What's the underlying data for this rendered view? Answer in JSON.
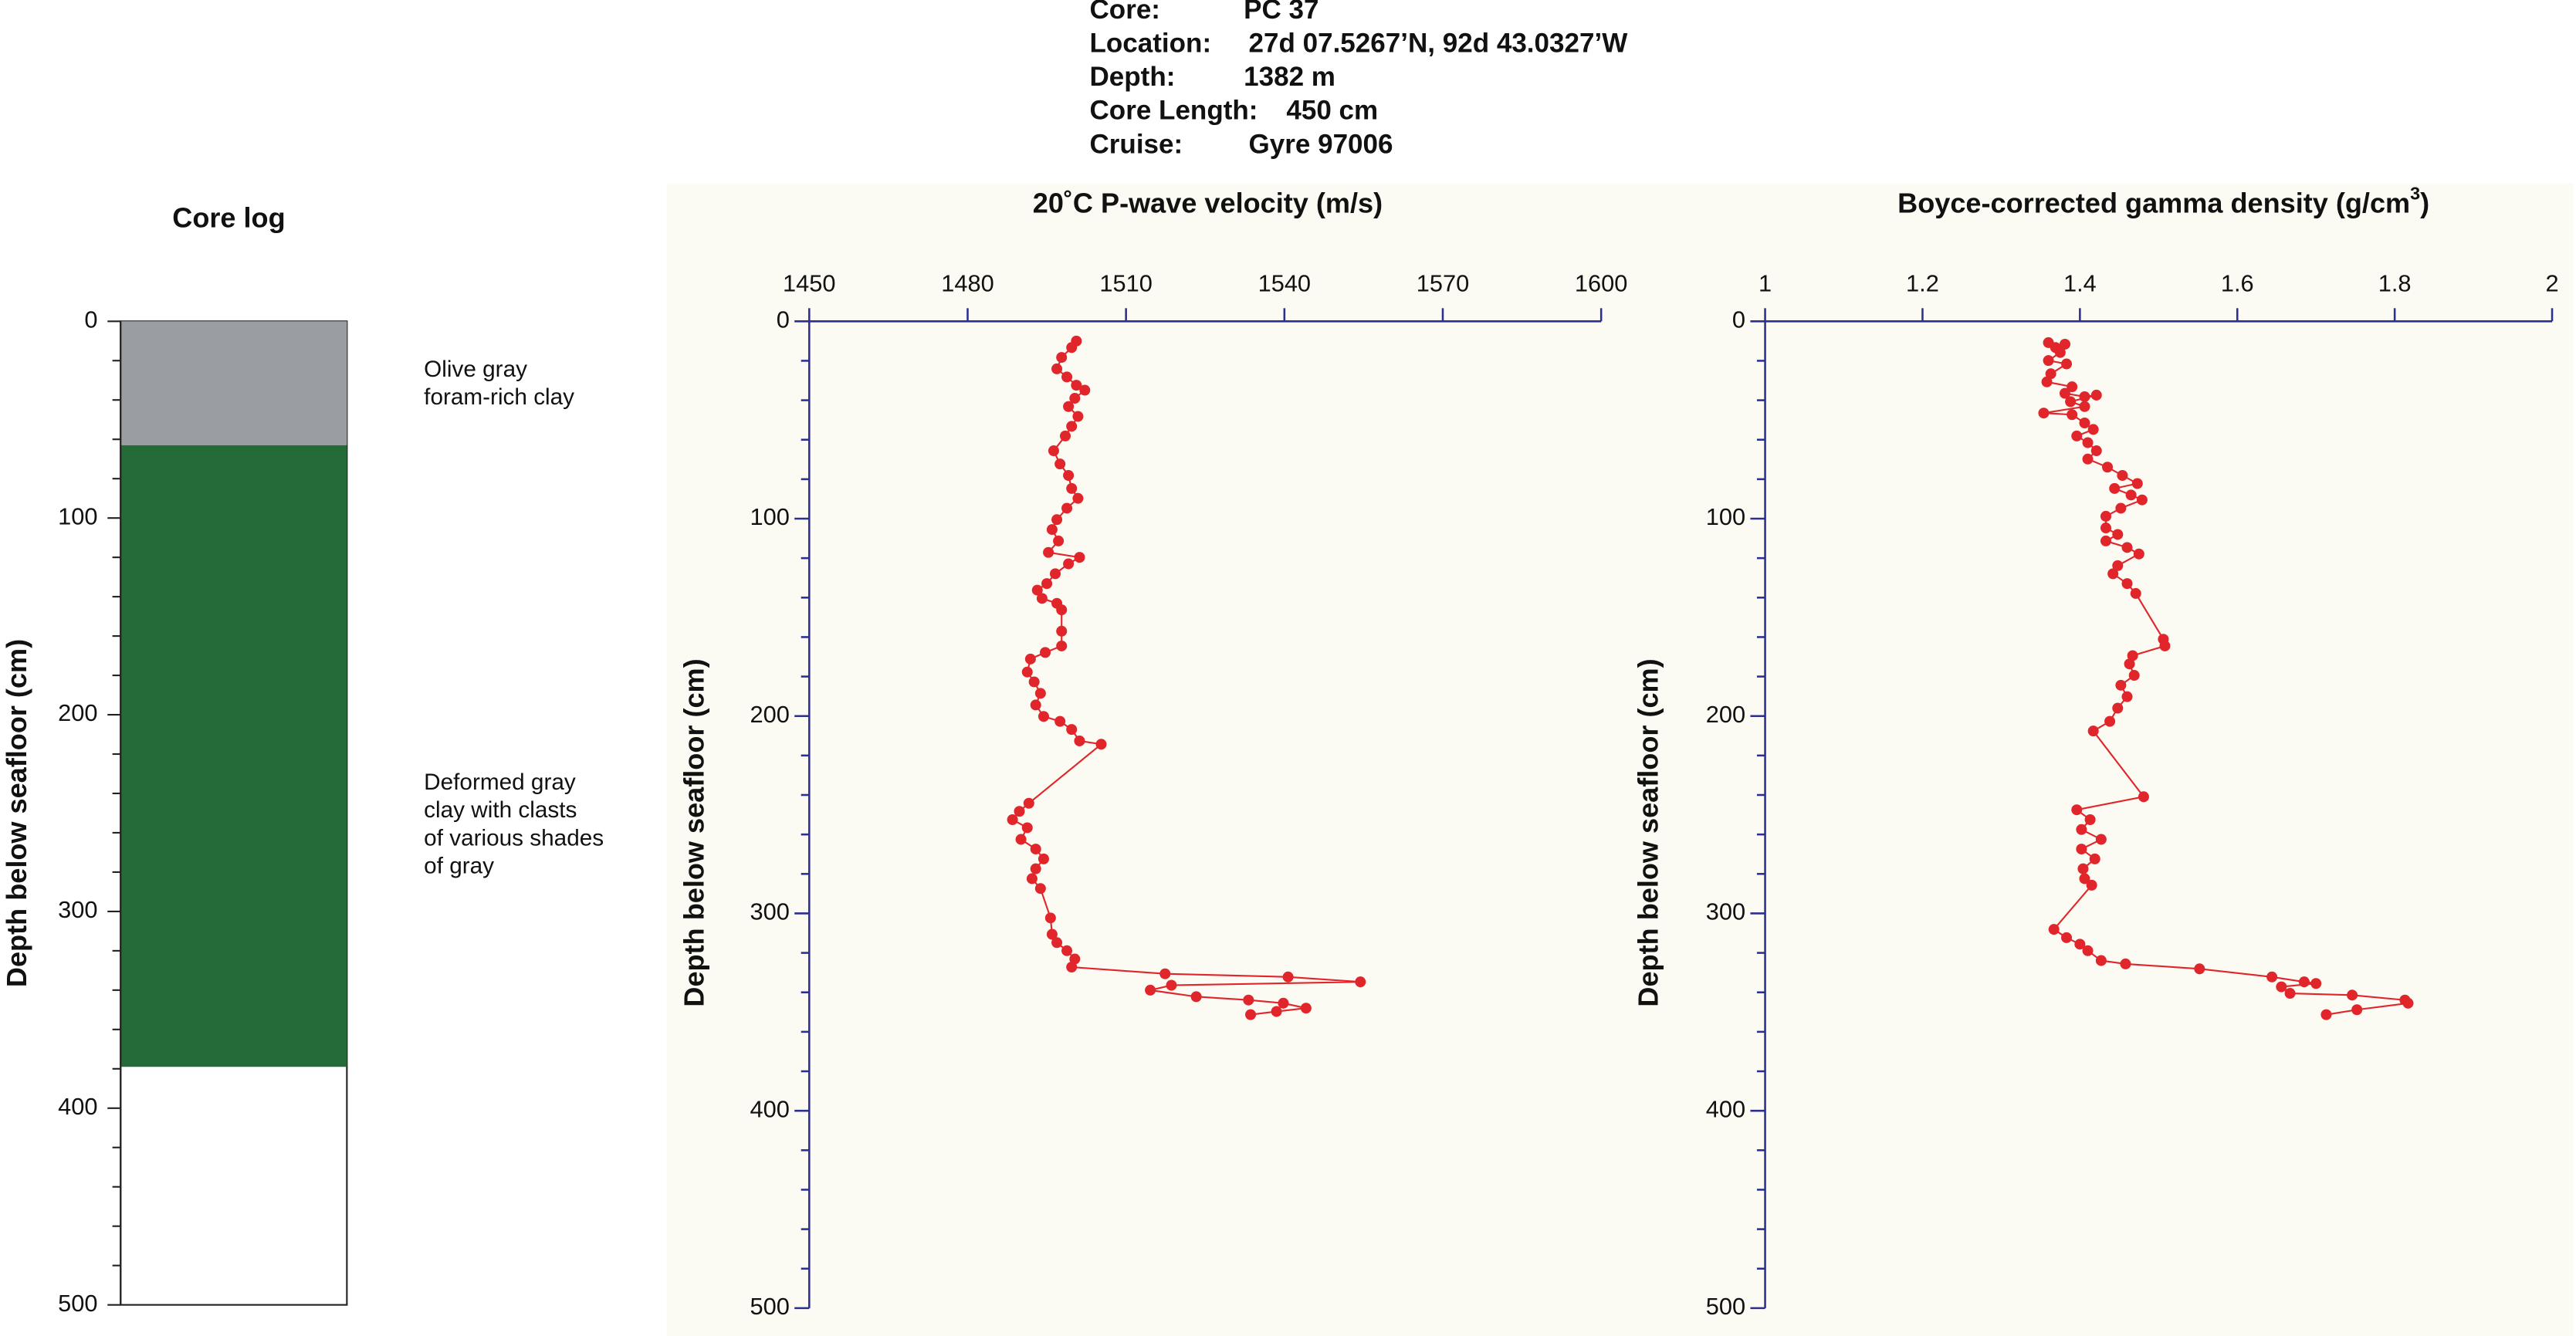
{
  "header": {
    "rows": [
      [
        "Core:",
        "PC 37"
      ],
      [
        "Location:",
        "27d 07.5267’N, 92d 43.0327’W"
      ],
      [
        "Depth:",
        "1382 m"
      ],
      [
        "Core Length:",
        "450 cm"
      ],
      [
        "Cruise:",
        "Gyre 97006"
      ]
    ]
  },
  "chart_data": [
    {
      "type": "core-log",
      "title": "Core log",
      "ylabel": "Depth below seafloor (cm)",
      "ylim": [
        0,
        500
      ],
      "yticks": [
        0,
        100,
        200,
        300,
        400,
        500
      ],
      "minor_yticks": [
        20,
        40,
        60,
        80,
        120,
        140,
        160,
        180,
        220,
        240,
        260,
        280,
        320,
        340,
        360,
        380,
        420,
        440,
        460,
        480
      ],
      "layers": [
        {
          "top": 0,
          "bottom": 63,
          "color": "#9a9da1",
          "label_lines": [
            "Olive gray",
            "foram-rich clay"
          ]
        },
        {
          "top": 63,
          "bottom": 379,
          "color": "#256b38",
          "label_lines": [
            "Deformed gray",
            "clay with clasts",
            "of various shades",
            "of gray"
          ]
        }
      ]
    },
    {
      "type": "profile",
      "title": "20˚C P-wave velocity (m/s)",
      "ylabel": "Depth below seafloor (cm)",
      "xlim": [
        1450,
        1600
      ],
      "xticks": [
        1450,
        1480,
        1510,
        1540,
        1570,
        1600
      ],
      "ylim": [
        0,
        500
      ],
      "yticks": [
        0,
        100,
        200,
        300,
        400,
        500
      ],
      "minor_yticks": [
        20,
        40,
        60,
        80,
        120,
        140,
        160,
        180,
        220,
        240,
        260,
        280,
        320,
        340,
        360,
        380,
        420,
        440,
        460,
        480
      ],
      "series": [
        {
          "color": "#e0262b",
          "values": [
            1500.6,
            1499.7,
            1497.8,
            1496.9,
            1498.8,
            1500.6,
            1502.2,
            1500.3,
            1499.1,
            1500.9,
            1499.7,
            1498.5,
            1496.3,
            1497.5,
            1499.1,
            1499.7,
            1500.9,
            1498.8,
            1496.9,
            1496.0,
            1497.2,
            1495.3,
            1501.2,
            1499.1,
            1496.6,
            1495.0,
            1493.2,
            1494.1,
            1496.9,
            1497.8,
            1497.8,
            1497.8,
            1494.7,
            1491.9,
            1491.3,
            1492.6,
            1493.8,
            1492.9,
            1494.4,
            1497.5,
            1499.7,
            1501.2,
            1505.3,
            1491.6,
            1489.8,
            1488.5,
            1491.3,
            1490.1,
            1492.9,
            1494.4,
            1492.9,
            1492.2,
            1493.8,
            1495.7,
            1496.0,
            1496.9,
            1498.8,
            1500.3,
            1499.7,
            1517.4,
            1540.7,
            1554.4,
            1518.6,
            1514.6,
            1523.3,
            1533.2,
            1539.8,
            1544.1,
            1538.5,
            1533.6
          ],
          "depths": [
            10.0,
            13.3,
            18.3,
            24.1,
            28.2,
            32.4,
            34.9,
            39.0,
            43.2,
            48.2,
            53.2,
            58.1,
            65.6,
            72.3,
            78.1,
            84.7,
            89.7,
            94.7,
            100.5,
            105.5,
            111.3,
            117.1,
            119.6,
            122.9,
            127.9,
            132.9,
            136.2,
            140.4,
            142.9,
            146.2,
            157.0,
            164.5,
            167.8,
            171.1,
            177.7,
            182.7,
            188.5,
            194.4,
            200.2,
            202.7,
            206.8,
            212.6,
            214.3,
            244.2,
            248.3,
            252.5,
            256.6,
            262.5,
            267.4,
            272.4,
            277.4,
            282.4,
            287.4,
            302.3,
            310.6,
            314.8,
            318.9,
            323.1,
            327.2,
            330.6,
            332.2,
            334.7,
            336.4,
            338.9,
            342.2,
            343.9,
            345.5,
            348.0,
            349.7,
            351.3
          ]
        }
      ]
    },
    {
      "type": "profile",
      "title": "Boyce-corrected gamma density (g/cm",
      "title_superscript": "3",
      "title_suffix": ")",
      "ylabel": "Depth below seafloor (cm)",
      "xlim": [
        1,
        2
      ],
      "xticks": [
        1,
        1.2,
        1.4,
        1.6,
        1.8,
        2
      ],
      "ylim": [
        0,
        500
      ],
      "yticks": [
        0,
        100,
        200,
        300,
        400,
        500
      ],
      "minor_yticks": [
        20,
        40,
        60,
        80,
        120,
        140,
        160,
        180,
        220,
        240,
        260,
        280,
        320,
        340,
        360,
        380,
        420,
        440,
        460,
        480
      ],
      "series": [
        {
          "color": "#e0262b",
          "values": [
            1.36,
            1.369,
            1.381,
            1.375,
            1.36,
            1.383,
            1.363,
            1.358,
            1.39,
            1.381,
            1.406,
            1.421,
            1.388,
            1.406,
            1.354,
            1.39,
            1.406,
            1.417,
            1.396,
            1.41,
            1.421,
            1.41,
            1.435,
            1.454,
            1.473,
            1.444,
            1.465,
            1.479,
            1.452,
            1.433,
            1.433,
            1.448,
            1.433,
            1.46,
            1.475,
            1.448,
            1.442,
            1.46,
            1.471,
            1.506,
            1.508,
            1.467,
            1.463,
            1.469,
            1.452,
            1.46,
            1.448,
            1.438,
            1.417,
            1.481,
            1.396,
            1.413,
            1.402,
            1.427,
            1.402,
            1.419,
            1.404,
            1.406,
            1.415,
            1.367,
            1.383,
            1.4,
            1.41,
            1.427,
            1.458,
            1.552,
            1.644,
            1.685,
            1.7,
            1.656,
            1.667,
            1.746,
            1.813,
            1.817,
            1.752,
            1.713
          ],
          "depths": [
            10.8,
            13.3,
            11.6,
            15.8,
            19.9,
            21.6,
            26.6,
            30.7,
            33.2,
            36.5,
            38.2,
            37.4,
            40.7,
            43.2,
            46.5,
            47.3,
            51.5,
            54.8,
            58.1,
            61.5,
            65.6,
            69.8,
            73.9,
            78.1,
            82.2,
            84.7,
            88.0,
            90.5,
            94.7,
            98.8,
            104.7,
            108.0,
            111.3,
            114.6,
            117.9,
            123.8,
            127.9,
            132.9,
            137.9,
            161.1,
            164.5,
            169.4,
            173.6,
            179.4,
            184.4,
            190.2,
            196.0,
            202.7,
            207.6,
            240.9,
            247.5,
            252.5,
            257.5,
            262.5,
            267.4,
            272.4,
            277.4,
            282.4,
            285.7,
            308.1,
            312.3,
            315.6,
            318.9,
            323.9,
            325.6,
            328.1,
            332.2,
            334.7,
            335.5,
            337.2,
            340.5,
            341.4,
            343.9,
            345.5,
            348.8,
            351.3
          ]
        }
      ]
    }
  ]
}
